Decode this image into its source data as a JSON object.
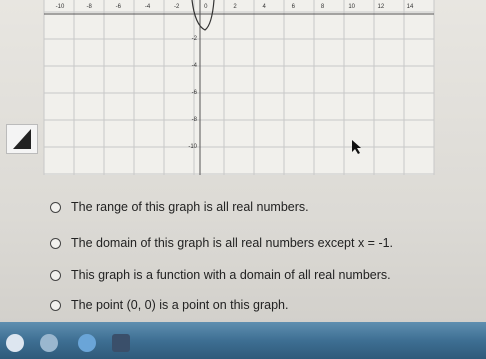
{
  "graph": {
    "x_labels": [
      "-10",
      "-8",
      "-6",
      "-4",
      "-2",
      "0",
      "2",
      "4",
      "6",
      "8",
      "10",
      "12",
      "14"
    ],
    "y_labels": [
      "-2",
      "-4",
      "-6",
      "-8",
      "-10"
    ]
  },
  "options": [
    "The range of this graph is all real numbers.",
    "The domain of this graph is all real numbers except x = -1.",
    "This graph is a function with a domain of all real numbers.",
    "The point (0, 0) is a point on this graph."
  ]
}
